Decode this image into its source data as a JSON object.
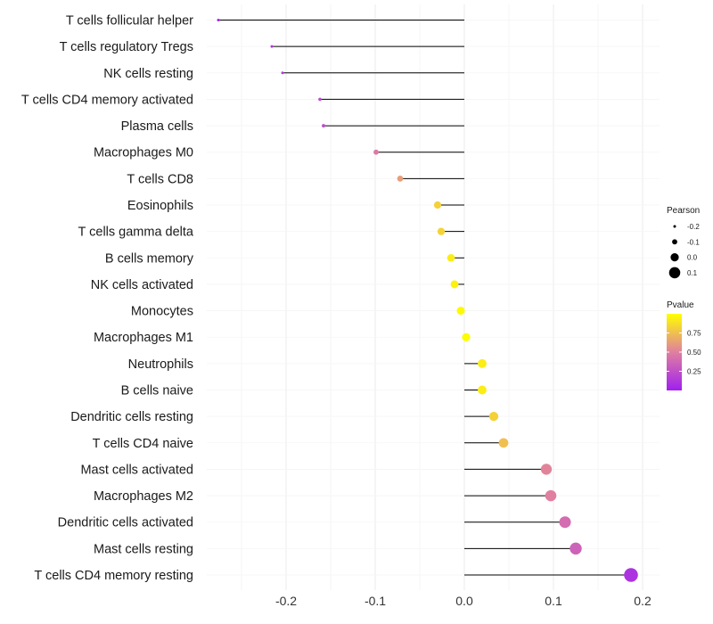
{
  "chart_data": {
    "type": "lollipop",
    "title": "",
    "xlabel": "",
    "ylabel": "",
    "xlim": [
      -0.28,
      0.2
    ],
    "x_ticks": [
      -0.2,
      -0.1,
      0.0,
      0.1,
      0.2
    ],
    "x_tick_labels": [
      "-0.2",
      "-0.1",
      "0.0",
      "0.1",
      "0.2"
    ],
    "categories": [
      "T cells follicular helper",
      "T cells regulatory  Tregs",
      "NK cells resting",
      "T cells CD4 memory activated",
      "Plasma cells",
      "Macrophages M0",
      "T cells CD8",
      "Eosinophils",
      "T cells gamma delta",
      "B cells memory",
      "NK cells activated",
      "Monocytes",
      "Macrophages M1",
      "Neutrophils",
      "B cells naive",
      "Dendritic cells resting",
      "T cells CD4 naive",
      "Mast cells activated",
      "Macrophages M2",
      "Dendritic cells activated",
      "Mast cells resting",
      "T cells CD4 memory resting"
    ],
    "pearson": [
      -0.276,
      -0.216,
      -0.204,
      -0.162,
      -0.158,
      -0.099,
      -0.072,
      -0.03,
      -0.026,
      -0.015,
      -0.011,
      -0.004,
      0.002,
      0.02,
      0.02,
      0.033,
      0.044,
      0.092,
      0.097,
      0.113,
      0.125,
      0.187
    ],
    "pvalue": [
      0.02,
      0.12,
      0.15,
      0.22,
      0.23,
      0.47,
      0.62,
      0.82,
      0.83,
      0.93,
      0.95,
      0.98,
      0.99,
      0.93,
      0.93,
      0.82,
      0.75,
      0.52,
      0.5,
      0.4,
      0.35,
      0.1
    ],
    "legend": {
      "size_title": "Pearson",
      "size_labels": [
        "-0.2",
        "-0.1",
        "0.0",
        "0.1"
      ],
      "size_values": [
        -0.2,
        -0.1,
        0.0,
        0.1
      ],
      "color_title": "Pvalue",
      "color_labels": [
        "0.75",
        "0.50",
        "0.25"
      ],
      "color_values": [
        0.75,
        0.5,
        0.25
      ],
      "color_range": [
        0.0,
        1.0
      ]
    },
    "colors": {
      "low": "#a020f0",
      "mid": "#e07fa0",
      "high": "#ffff00",
      "stem": "#000000",
      "grid": "#ebebeb"
    }
  }
}
